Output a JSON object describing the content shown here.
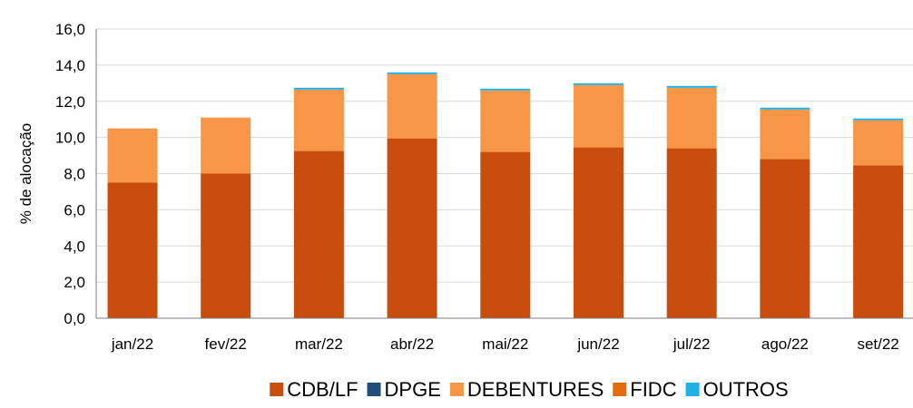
{
  "chart_data": {
    "type": "bar",
    "stacked": true,
    "ylabel": "% de alocação",
    "xlabel": "",
    "ylim": [
      0,
      16
    ],
    "y_ticks": [
      "0,0",
      "2,0",
      "4,0",
      "6,0",
      "8,0",
      "10,0",
      "12,0",
      "14,0",
      "16,0"
    ],
    "grid": true,
    "legend_position": "bottom",
    "categories": [
      "jan/22",
      "fev/22",
      "mar/22",
      "abr/22",
      "mai/22",
      "jun/22",
      "jul/22",
      "ago/22",
      "set/22"
    ],
    "series": [
      {
        "name": "CDB/LF",
        "color": "#C94D0D",
        "values": [
          7.5,
          8.0,
          9.25,
          9.95,
          9.2,
          9.45,
          9.4,
          8.8,
          8.45
        ]
      },
      {
        "name": "DPGE",
        "color": "#1F4E79",
        "values": [
          0,
          0,
          0,
          0,
          0,
          0,
          0,
          0,
          0
        ]
      },
      {
        "name": "DEBENTURES",
        "color": "#F79646",
        "values": [
          3.0,
          3.1,
          3.4,
          3.55,
          3.4,
          3.45,
          3.35,
          2.75,
          2.5
        ]
      },
      {
        "name": "FIDC",
        "color": "#E46C0A",
        "values": [
          0,
          0,
          0,
          0,
          0,
          0,
          0,
          0,
          0
        ]
      },
      {
        "name": "OUTROS",
        "color": "#1FB1E6",
        "values": [
          0,
          0,
          0.1,
          0.1,
          0.1,
          0.1,
          0.1,
          0.1,
          0.1
        ]
      }
    ]
  }
}
